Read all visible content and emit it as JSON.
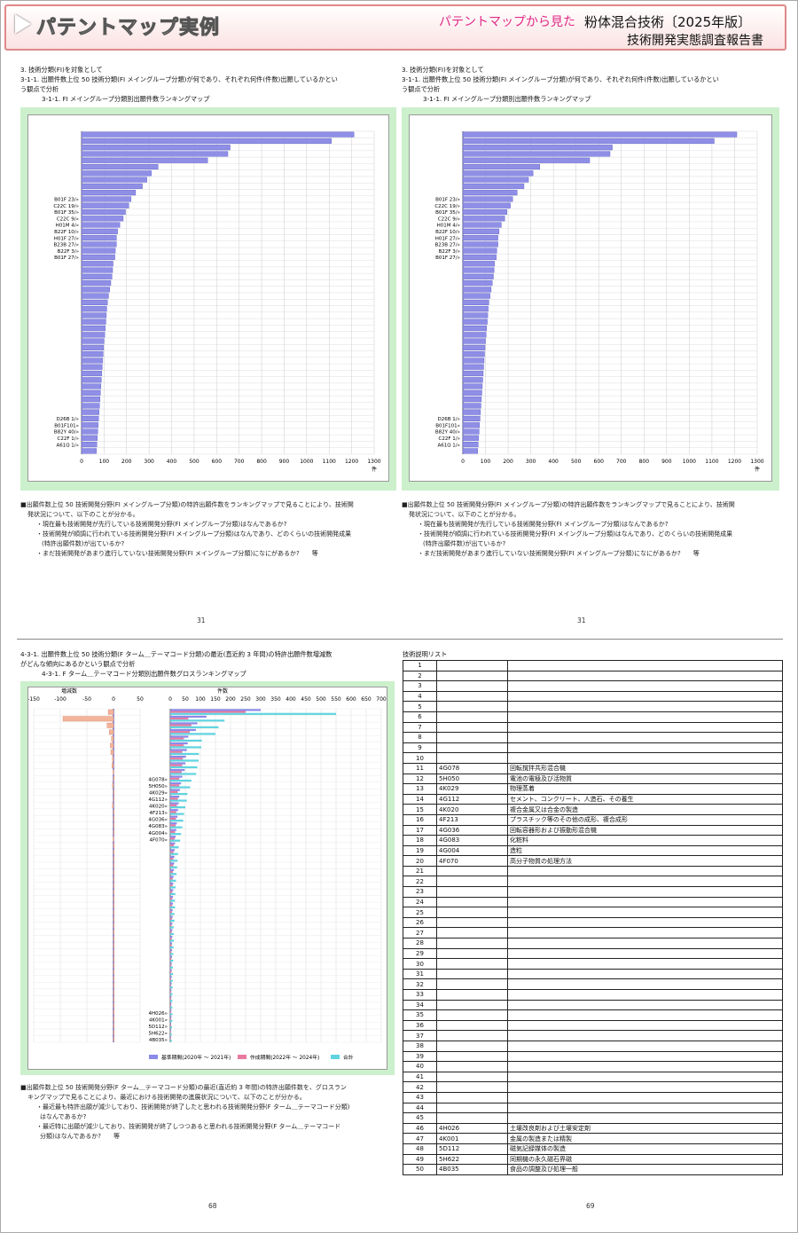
{
  "header": {
    "title": "パテントマップ実例",
    "subtitle_pink": "パテントマップから見た",
    "subtitle_main": "粉体混合技術〔2025年版〕",
    "subtitle_report": "技術開発実態調査報告書"
  },
  "left_panel": {
    "l1": "3. 技術分類(FI)を対象として",
    "l2": "3-1-1. 出願件数上位 50 技術分類(FI メイングループ分類)が何であり、それぞれ何件(件数)出願しているかとい",
    "l3": "う観点で分析",
    "l4": "3-1-1. FI メイングループ分類別出願件数ランキングマップ",
    "desc1": "■出願件数上位 50 技術開発分野(FI メイングループ分類)の特許出願件数をランキングマップで見ることにより、技術開",
    "desc2": "発状況について、以下のことが分かる。",
    "desc3": "・現在最も技術開発が先行している技術開発分野(FI メイングループ分類)はなんであるか?",
    "desc4": "・技術開発が順調に行われている技術開発分野(FI メイングループ分類)はなんであり、どのくらいの技術開発成果",
    "desc5": "(特許出願件数)が出ているか?",
    "desc6": "・まだ技術開発があまり進行していない技術開発分野(FI メイングループ分類)になにがあるか?　　等",
    "page": "31"
  },
  "right_panel": {
    "l1": "3. 技術分類(FI)を対象として",
    "l2": "3-1-1. 出願件数上位 50 技術分類(FI メイングループ分類)が何であり、それぞれ何件(件数)出願しているかとい",
    "l3": "う観点で分析",
    "l4": "3-1-1. FI メイングループ分類別出願件数ランキングマップ",
    "desc1": "■出願件数上位 50 技術開発分野(FI メイングループ分類)の特許出願件数をランキングマップで見ることにより、技術開",
    "desc2": "発状況について、以下のことが分かる。",
    "desc3": "・現在最も技術開発が先行している技術開発分野(FI メイングループ分類)はなんであるか?",
    "desc4": "・技術開発が順調に行われている技術開発分野(FI メイングループ分類)はなんであり、どのくらいの技術開発成果",
    "desc5": "(特許出願件数)が出ているか?",
    "desc6": "・まだ技術開発があまり進行していない技術開発分野(FI メイングループ分類)になにがあるか?　　等",
    "page": "31"
  },
  "bottom_left": {
    "l1": "4-3-1. 出願件数上位 50 技術分類(F ターム＿テーマコード分類)の最近(直近約 3 年間)の特許出願件数増減数",
    "l2": "がどんな傾向にあるかという観点で分析",
    "l3": "4-3-1. F ターム＿テーマコード分類別出願件数グロスランキングマップ",
    "desc1": "■出願件数上位 50 技術開発分野(F ターム＿テーマコード分類)の最近(直近約 3 年間)の特許出願件数を、グロスラン",
    "desc2": "キングマップで見ることにより、最近における技術開発の進展状況について、以下のことが分かる。",
    "desc3": "・最近最も特許出願が減少しており、技術開発が終了したと思われる技術開発分野(F ターム＿テーマコード分類)",
    "desc4": "はなんであるか?",
    "desc5": "・最近特に出願が減少しており、技術開発が終了しつつあると思われる技術開発分野(F ターム＿テーマコード",
    "desc6": "分類)はなんであるか?　　等",
    "page": "68"
  },
  "bottom_right": {
    "title": "技術説明リスト",
    "page": "69"
  },
  "chart_data": [
    {
      "type": "bar",
      "orientation": "horizontal",
      "xlabel": "件",
      "xlim": [
        0,
        1300
      ],
      "xticks": [
        "0",
        "100",
        "200",
        "300",
        "400",
        "500",
        "600",
        "700",
        "800",
        "900",
        "1000",
        "1100",
        "1200",
        "1300"
      ],
      "visible_labels": [
        {
          "i": 10,
          "t": "B01F 23/»"
        },
        {
          "i": 11,
          "t": "C22C 19/»"
        },
        {
          "i": 12,
          "t": "B01F 35/»"
        },
        {
          "i": 13,
          "t": "C22C 9/»"
        },
        {
          "i": 14,
          "t": "H01M 4/»"
        },
        {
          "i": 15,
          "t": "B22F 10/»"
        },
        {
          "i": 16,
          "t": "H01F 27/»"
        },
        {
          "i": 17,
          "t": "B23B 27/»"
        },
        {
          "i": 18,
          "t": "B22F 3/»"
        },
        {
          "i": 19,
          "t": "B01F 27/»"
        },
        {
          "i": 44,
          "t": "D26B 1/»"
        },
        {
          "i": 45,
          "t": "B01F101»"
        },
        {
          "i": 46,
          "t": "B82Y 40/»"
        },
        {
          "i": 47,
          "t": "C22F 1/»"
        },
        {
          "i": 48,
          "t": "A61Q 1/»"
        }
      ],
      "values": [
        1210,
        1110,
        660,
        650,
        560,
        340,
        310,
        290,
        270,
        240,
        220,
        210,
        195,
        185,
        170,
        160,
        155,
        155,
        150,
        148,
        140,
        138,
        135,
        130,
        125,
        120,
        115,
        112,
        110,
        108,
        105,
        103,
        100,
        98,
        96,
        94,
        92,
        90,
        88,
        86,
        84,
        82,
        80,
        78,
        76,
        74,
        72,
        70,
        68,
        66
      ]
    },
    {
      "type": "bar",
      "orientation": "horizontal",
      "xlabel": "件",
      "xlim": [
        0,
        1300
      ],
      "xticks": [
        "0",
        "100",
        "200",
        "300",
        "400",
        "500",
        "600",
        "700",
        "800",
        "900",
        "1000",
        "1100",
        "1200",
        "1300"
      ],
      "visible_labels": [
        {
          "i": 10,
          "t": "B01F 23/»"
        },
        {
          "i": 11,
          "t": "C22C 19/»"
        },
        {
          "i": 12,
          "t": "B01F 35/»"
        },
        {
          "i": 13,
          "t": "C22C 9/»"
        },
        {
          "i": 14,
          "t": "H01M 4/»"
        },
        {
          "i": 15,
          "t": "B22F 10/»"
        },
        {
          "i": 16,
          "t": "H01F 27/»"
        },
        {
          "i": 17,
          "t": "B23B 27/»"
        },
        {
          "i": 18,
          "t": "B22F 3/»"
        },
        {
          "i": 19,
          "t": "B01F 27/»"
        },
        {
          "i": 44,
          "t": "D26B 1/»"
        },
        {
          "i": 45,
          "t": "B01F101»"
        },
        {
          "i": 46,
          "t": "B82Y 40/»"
        },
        {
          "i": 47,
          "t": "C22F 1/»"
        },
        {
          "i": 48,
          "t": "A61Q 1/»"
        }
      ],
      "values": [
        1210,
        1110,
        660,
        650,
        560,
        340,
        310,
        290,
        270,
        240,
        220,
        210,
        195,
        185,
        170,
        160,
        155,
        155,
        150,
        148,
        140,
        138,
        135,
        130,
        125,
        120,
        115,
        112,
        110,
        108,
        105,
        103,
        100,
        98,
        96,
        94,
        92,
        90,
        88,
        86,
        84,
        82,
        80,
        78,
        76,
        74,
        72,
        70,
        68,
        66
      ]
    },
    {
      "type": "bar",
      "orientation": "horizontal",
      "subtype": "gross-ranking",
      "left_axis_title": "増減数",
      "left_xlim": [
        -150,
        50
      ],
      "left_xticks": [
        "-150",
        "-100",
        "-50",
        "0",
        "50"
      ],
      "right_axis_title": "件数",
      "right_xlim": [
        0,
        700
      ],
      "right_xticks": [
        "0",
        "50",
        "100",
        "150",
        "200",
        "250",
        "300",
        "350",
        "400",
        "450",
        "500",
        "550",
        "600",
        "650",
        "700"
      ],
      "visible_labels": [
        {
          "i": 10,
          "t": "4G078»"
        },
        {
          "i": 11,
          "t": "5H050»"
        },
        {
          "i": 12,
          "t": "4K029»"
        },
        {
          "i": 13,
          "t": "4G112»"
        },
        {
          "i": 14,
          "t": "4K020»"
        },
        {
          "i": 15,
          "t": "4F213»"
        },
        {
          "i": 16,
          "t": "4G036»"
        },
        {
          "i": 17,
          "t": "4G083»"
        },
        {
          "i": 18,
          "t": "4G004»"
        },
        {
          "i": 19,
          "t": "4F070»"
        },
        {
          "i": 45,
          "t": "4H026»"
        },
        {
          "i": 46,
          "t": "4K001»"
        },
        {
          "i": 47,
          "t": "5D112»"
        },
        {
          "i": 48,
          "t": "5H622»"
        },
        {
          "i": 49,
          "t": "4B035»"
        }
      ],
      "legend": [
        "基準期間(2020年 〜 2021年)",
        "作成期間(2022年 〜 2024年)",
        "合計"
      ],
      "legend_colors": [
        "#8a8ae8",
        "#e87aa0",
        "#5fd4e0"
      ],
      "increase": [
        -10,
        -95,
        -12,
        -8,
        -4,
        -6,
        -5,
        -2,
        -3,
        -1,
        0,
        -2,
        0,
        0,
        -2,
        0,
        0,
        0,
        0,
        -1,
        0,
        0,
        0,
        0,
        0,
        0,
        0,
        0,
        0,
        0,
        0,
        0,
        0,
        0,
        0,
        0,
        0,
        0,
        0,
        0,
        0,
        0,
        0,
        0,
        0,
        0,
        0,
        0,
        0,
        0
      ],
      "base": [
        300,
        120,
        90,
        85,
        60,
        58,
        55,
        52,
        50,
        48,
        40,
        36,
        32,
        30,
        28,
        26,
        24,
        22,
        20,
        18,
        16,
        15,
        14,
        13,
        12,
        11,
        10,
        10,
        9,
        9,
        8,
        8,
        7,
        7,
        7,
        6,
        6,
        6,
        5,
        5,
        5,
        5,
        4,
        4,
        4,
        4,
        4,
        3,
        3,
        3
      ],
      "current": [
        250,
        60,
        70,
        65,
        45,
        45,
        40,
        42,
        40,
        38,
        30,
        30,
        25,
        25,
        22,
        20,
        19,
        18,
        16,
        15,
        12,
        11,
        10,
        10,
        9,
        8,
        8,
        7,
        7,
        7,
        6,
        6,
        5,
        5,
        5,
        5,
        4,
        4,
        4,
        4,
        3,
        3,
        3,
        3,
        3,
        3,
        3,
        3,
        2,
        2
      ],
      "total": [
        550,
        180,
        160,
        150,
        105,
        103,
        95,
        94,
        90,
        86,
        70,
        66,
        57,
        55,
        50,
        46,
        43,
        40,
        36,
        33,
        28,
        26,
        24,
        23,
        21,
        19,
        18,
        17,
        16,
        16,
        14,
        14,
        12,
        12,
        12,
        11,
        10,
        10,
        9,
        9,
        8,
        8,
        7,
        7,
        7,
        7,
        7,
        6,
        5,
        5
      ]
    }
  ],
  "tech_list": [
    {
      "n": "1",
      "code": "",
      "desc": ""
    },
    {
      "n": "2",
      "code": "",
      "desc": ""
    },
    {
      "n": "3",
      "code": "",
      "desc": ""
    },
    {
      "n": "4",
      "code": "",
      "desc": ""
    },
    {
      "n": "5",
      "code": "",
      "desc": ""
    },
    {
      "n": "6",
      "code": "",
      "desc": ""
    },
    {
      "n": "7",
      "code": "",
      "desc": ""
    },
    {
      "n": "8",
      "code": "",
      "desc": ""
    },
    {
      "n": "9",
      "code": "",
      "desc": ""
    },
    {
      "n": "10",
      "code": "",
      "desc": ""
    },
    {
      "n": "11",
      "code": "4G078",
      "desc": "回転撹拌共形混合機"
    },
    {
      "n": "12",
      "code": "5H050",
      "desc": "電池の電極及び活物質"
    },
    {
      "n": "13",
      "code": "4K029",
      "desc": "物理蒸着"
    },
    {
      "n": "14",
      "code": "4G112",
      "desc": "セメント、コンクリート、人造石、その養生"
    },
    {
      "n": "15",
      "code": "4K020",
      "desc": "複合金属又は合金の製造"
    },
    {
      "n": "16",
      "code": "4F213",
      "desc": "プラスチック等のその他の成形、複合成形"
    },
    {
      "n": "17",
      "code": "4G036",
      "desc": "回転容器形および振動形混合機"
    },
    {
      "n": "18",
      "code": "4G083",
      "desc": "化粧料"
    },
    {
      "n": "19",
      "code": "4G004",
      "desc": "造粒"
    },
    {
      "n": "20",
      "code": "4F070",
      "desc": "高分子物質の処理方法"
    },
    {
      "n": "21",
      "code": "",
      "desc": ""
    },
    {
      "n": "22",
      "code": "",
      "desc": ""
    },
    {
      "n": "23",
      "code": "",
      "desc": ""
    },
    {
      "n": "24",
      "code": "",
      "desc": ""
    },
    {
      "n": "25",
      "code": "",
      "desc": ""
    },
    {
      "n": "26",
      "code": "",
      "desc": ""
    },
    {
      "n": "27",
      "code": "",
      "desc": ""
    },
    {
      "n": "28",
      "code": "",
      "desc": ""
    },
    {
      "n": "29",
      "code": "",
      "desc": ""
    },
    {
      "n": "30",
      "code": "",
      "desc": ""
    },
    {
      "n": "31",
      "code": "",
      "desc": ""
    },
    {
      "n": "32",
      "code": "",
      "desc": ""
    },
    {
      "n": "33",
      "code": "",
      "desc": ""
    },
    {
      "n": "34",
      "code": "",
      "desc": ""
    },
    {
      "n": "35",
      "code": "",
      "desc": ""
    },
    {
      "n": "36",
      "code": "",
      "desc": ""
    },
    {
      "n": "37",
      "code": "",
      "desc": ""
    },
    {
      "n": "38",
      "code": "",
      "desc": ""
    },
    {
      "n": "39",
      "code": "",
      "desc": ""
    },
    {
      "n": "40",
      "code": "",
      "desc": ""
    },
    {
      "n": "41",
      "code": "",
      "desc": ""
    },
    {
      "n": "42",
      "code": "",
      "desc": ""
    },
    {
      "n": "43",
      "code": "",
      "desc": ""
    },
    {
      "n": "44",
      "code": "",
      "desc": ""
    },
    {
      "n": "45",
      "code": "",
      "desc": ""
    },
    {
      "n": "46",
      "code": "4H026",
      "desc": "土壌改良剤および土壌安定剤"
    },
    {
      "n": "47",
      "code": "4K001",
      "desc": "金属の製造または精製"
    },
    {
      "n": "48",
      "code": "5D112",
      "desc": "磁気記録媒体の製造"
    },
    {
      "n": "49",
      "code": "5H622",
      "desc": "同期機の永久磁石界磁"
    },
    {
      "n": "50",
      "code": "4B035",
      "desc": "食品の調整及び処理一般"
    }
  ]
}
